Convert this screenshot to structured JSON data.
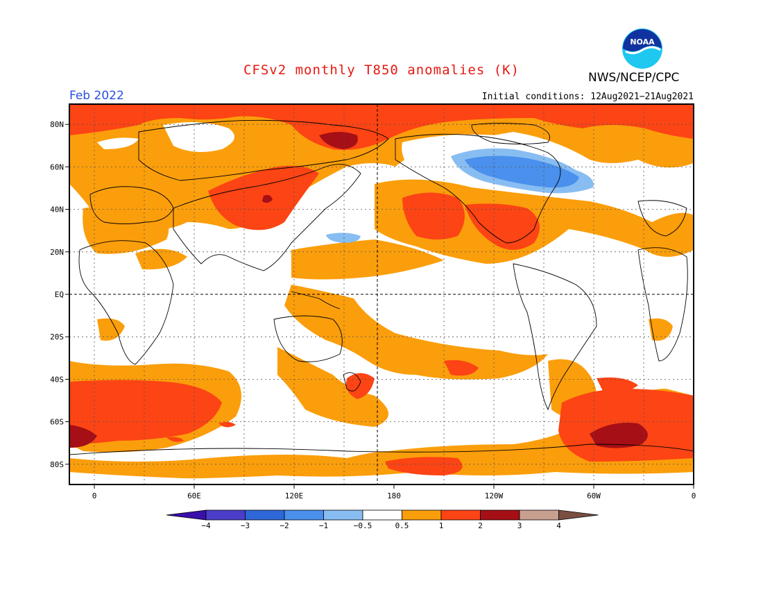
{
  "title": "CFSv2 monthly T850 anomalies (K)",
  "agency": "NWS/NCEP/CPC",
  "logo_text": "NOAA",
  "month": "Feb 2022",
  "initial_conditions": "Initial conditions: 12Aug2021−21Aug2021",
  "lat_labels": [
    "80N",
    "60N",
    "40N",
    "20N",
    "EQ",
    "20S",
    "40S",
    "60S",
    "80S"
  ],
  "lat_values": [
    80,
    60,
    40,
    20,
    0,
    -20,
    -40,
    -60,
    -80
  ],
  "lon_labels": [
    "0",
    "60E",
    "120E",
    "180",
    "120W",
    "60W",
    "0"
  ],
  "lon_values": [
    0,
    60,
    120,
    180,
    240,
    300,
    360
  ],
  "colorbar": {
    "colors": [
      "#3a0eaa",
      "#4a3ec8",
      "#2e67d8",
      "#4a90ec",
      "#88bdf2",
      "#ffffff",
      "#fb9e0b",
      "#fc4414",
      "#a50f15",
      "#c8a090",
      "#7a4f42"
    ],
    "labels": [
      "−4",
      "−3",
      "−2",
      "−1",
      "−0.5",
      "0.5",
      "1",
      "2",
      "3",
      "4"
    ]
  },
  "colors": {
    "c1": "#fb9e0b",
    "c2": "#fc4414",
    "c3": "#a50f15",
    "cneg1": "#4a90ec",
    "cneg05": "#88bdf2"
  }
}
